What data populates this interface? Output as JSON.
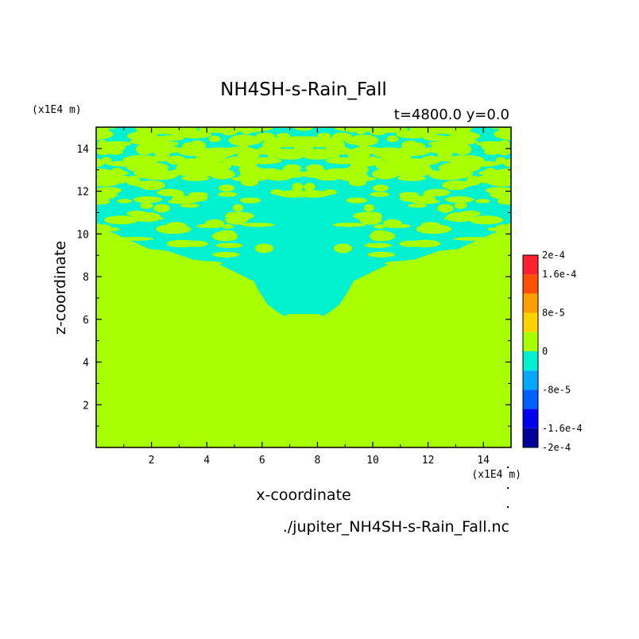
{
  "chart_data": {
    "type": "heatmap",
    "title": "NH4SH-s-Rain_Fall",
    "subtitle": "t=4800.0 y=0.0",
    "xlabel": "x-coordinate",
    "ylabel": "z-coordinate",
    "x_unit": "(x1E4 m)",
    "y_unit": "(x1E4 m)",
    "footer": "./jupiter_NH4SH-s-Rain_Fall.nc",
    "xlim": [
      0,
      15
    ],
    "ylim": [
      0,
      15
    ],
    "x_ticks": [
      "2",
      "4",
      "6",
      "8",
      "10",
      "12",
      "14"
    ],
    "y_ticks": [
      "2",
      "4",
      "6",
      "8",
      "10",
      "12",
      "14"
    ],
    "colorbar": {
      "levels": [
        -0.0002,
        -0.00016,
        -0.00012,
        -8e-05,
        -4e-05,
        0,
        4e-05,
        8e-05,
        0.00012,
        0.00016,
        0.0002
      ],
      "labels": [
        "2e-4",
        "1.6e-4",
        "8e-5",
        "0",
        "-8e-5",
        "-1.6e-4",
        "-2e-4"
      ],
      "label_values": [
        0.0002,
        0.00016,
        8e-05,
        0,
        -8e-05,
        -0.00016,
        -0.0002
      ],
      "colors": [
        "#000099",
        "#0000ee",
        "#0060ff",
        "#00a8ff",
        "#00f0d0",
        "#a8ff00",
        "#ffd200",
        "#ffa000",
        "#ff5000",
        "#ff2030"
      ]
    },
    "field": {
      "background_value_range": [
        0,
        4e-05
      ],
      "negative_region_value_range": [
        -4e-05,
        0
      ],
      "negative_region_z_range": [
        6,
        15
      ],
      "symmetric_about_x": 7.5
    }
  }
}
